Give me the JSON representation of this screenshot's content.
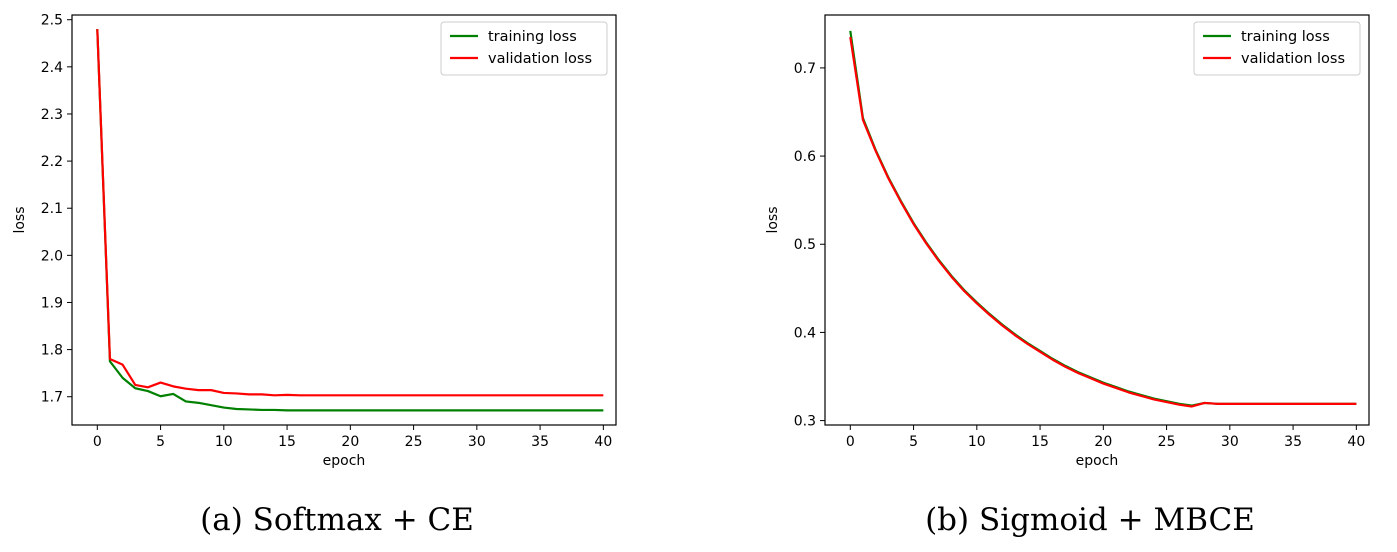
{
  "chart_data": [
    {
      "type": "line",
      "caption": "(a) Softmax + CE",
      "xlabel": "epoch",
      "ylabel": "loss",
      "xlim": [
        -2,
        41
      ],
      "ylim": [
        1.64,
        2.51
      ],
      "xticks": [
        0,
        5,
        10,
        15,
        20,
        25,
        30,
        35,
        40
      ],
      "yticks": [
        1.7,
        1.8,
        1.9,
        2.0,
        2.1,
        2.2,
        2.3,
        2.4,
        2.5
      ],
      "legend": "top-right",
      "grid": false,
      "x": [
        0,
        1,
        2,
        3,
        4,
        5,
        6,
        7,
        8,
        9,
        10,
        11,
        12,
        13,
        14,
        15,
        16,
        17,
        18,
        19,
        20,
        21,
        22,
        23,
        24,
        25,
        26,
        27,
        28,
        29,
        30,
        31,
        32,
        33,
        34,
        35,
        36,
        37,
        38,
        39,
        40
      ],
      "series": [
        {
          "name": "training loss",
          "color": "#008000",
          "values": [
            2.48,
            1.775,
            1.74,
            1.718,
            1.712,
            1.701,
            1.706,
            1.69,
            1.687,
            1.682,
            1.677,
            1.674,
            1.673,
            1.672,
            1.672,
            1.671,
            1.671,
            1.671,
            1.671,
            1.671,
            1.671,
            1.671,
            1.671,
            1.671,
            1.671,
            1.671,
            1.671,
            1.671,
            1.671,
            1.671,
            1.671,
            1.671,
            1.671,
            1.671,
            1.671,
            1.671,
            1.671,
            1.671,
            1.671,
            1.671,
            1.671
          ]
        },
        {
          "name": "validation loss",
          "color": "#ff0000",
          "values": [
            2.48,
            1.78,
            1.768,
            1.725,
            1.72,
            1.73,
            1.722,
            1.717,
            1.714,
            1.714,
            1.708,
            1.707,
            1.705,
            1.705,
            1.703,
            1.704,
            1.703,
            1.703,
            1.703,
            1.703,
            1.703,
            1.703,
            1.703,
            1.703,
            1.703,
            1.703,
            1.703,
            1.703,
            1.703,
            1.703,
            1.703,
            1.703,
            1.703,
            1.703,
            1.703,
            1.703,
            1.703,
            1.703,
            1.703,
            1.703,
            1.703
          ]
        }
      ]
    },
    {
      "type": "line",
      "caption": "(b) Sigmoid + MBCE",
      "xlabel": "epoch",
      "ylabel": "loss",
      "xlim": [
        -2,
        41
      ],
      "ylim": [
        0.295,
        0.76
      ],
      "xticks": [
        0,
        5,
        10,
        15,
        20,
        25,
        30,
        35,
        40
      ],
      "yticks": [
        0.3,
        0.4,
        0.5,
        0.6,
        0.7
      ],
      "legend": "top-right",
      "grid": false,
      "x": [
        0,
        1,
        2,
        3,
        4,
        5,
        6,
        7,
        8,
        9,
        10,
        11,
        12,
        13,
        14,
        15,
        16,
        17,
        18,
        19,
        20,
        21,
        22,
        23,
        24,
        25,
        26,
        27,
        28,
        29,
        30,
        31,
        32,
        33,
        34,
        35,
        36,
        37,
        38,
        39,
        40
      ],
      "series": [
        {
          "name": "training loss",
          "color": "#008000",
          "values": [
            0.742,
            0.643,
            0.607,
            0.576,
            0.549,
            0.524,
            0.502,
            0.482,
            0.464,
            0.448,
            0.434,
            0.421,
            0.409,
            0.398,
            0.388,
            0.379,
            0.37,
            0.362,
            0.355,
            0.349,
            0.343,
            0.338,
            0.333,
            0.329,
            0.325,
            0.322,
            0.319,
            0.317,
            0.32,
            0.319,
            0.319,
            0.319,
            0.319,
            0.319,
            0.319,
            0.319,
            0.319,
            0.319,
            0.319,
            0.319,
            0.319
          ]
        },
        {
          "name": "validation loss",
          "color": "#ff0000",
          "values": [
            0.735,
            0.641,
            0.606,
            0.575,
            0.548,
            0.523,
            0.501,
            0.481,
            0.463,
            0.447,
            0.433,
            0.42,
            0.408,
            0.397,
            0.387,
            0.378,
            0.369,
            0.361,
            0.354,
            0.348,
            0.342,
            0.337,
            0.332,
            0.328,
            0.324,
            0.321,
            0.318,
            0.316,
            0.32,
            0.319,
            0.319,
            0.319,
            0.319,
            0.319,
            0.319,
            0.319,
            0.319,
            0.319,
            0.319,
            0.319,
            0.319
          ]
        }
      ]
    }
  ]
}
